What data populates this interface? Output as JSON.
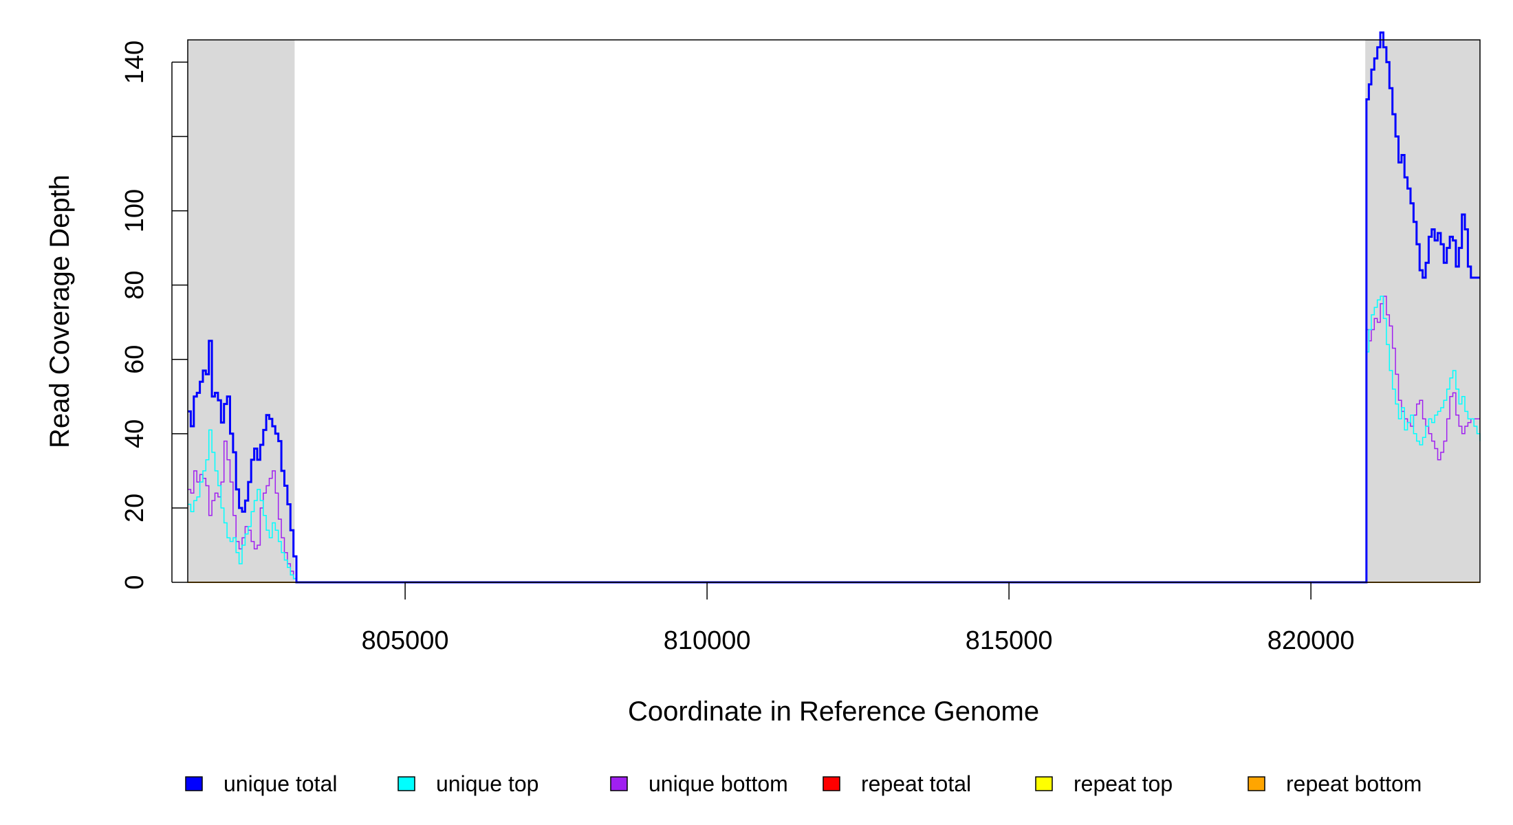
{
  "chart_data": {
    "type": "line",
    "title": "",
    "xlabel": "Coordinate in Reference Genome",
    "ylabel": "Read Coverage Depth",
    "xlim": [
      801400,
      822800
    ],
    "ylim": [
      0,
      146
    ],
    "x_ticks": [
      805000,
      810000,
      815000,
      820000
    ],
    "x_tick_labels": [
      "805000",
      "810000",
      "815000",
      "820000"
    ],
    "y_ticks": [
      0,
      20,
      40,
      60,
      80,
      100,
      120,
      140
    ],
    "y_tick_labels": [
      "0",
      "20",
      "40",
      "60",
      "80",
      "100",
      "",
      "140"
    ],
    "shaded_regions": [
      [
        801400,
        803170
      ],
      [
        820900,
        822800
      ]
    ],
    "shade_color": "#d9d9d9",
    "grid": false,
    "legend_position": "bottom",
    "series": [
      {
        "name": "unique total",
        "color": "#0000ff",
        "line_width": 3,
        "x": [
          801400,
          801450,
          801500,
          801550,
          801600,
          801650,
          801700,
          801750,
          801800,
          801850,
          801900,
          801950,
          802000,
          802050,
          802100,
          802150,
          802200,
          802250,
          802300,
          802350,
          802400,
          802450,
          802500,
          802550,
          802600,
          802650,
          802700,
          802750,
          802800,
          802850,
          802900,
          802950,
          803000,
          803050,
          803100,
          803150,
          803200,
          803250,
          803300,
          803350,
          803400,
          803450,
          803500,
          820900,
          820920,
          820960,
          821000,
          821050,
          821100,
          821150,
          821200,
          821250,
          821300,
          821350,
          821400,
          821450,
          821500,
          821550,
          821600,
          821650,
          821700,
          821750,
          821800,
          821850,
          821900,
          821950,
          822000,
          822050,
          822100,
          822150,
          822200,
          822250,
          822300,
          822350,
          822400,
          822450,
          822500,
          822550,
          822600,
          822650,
          822700,
          822750,
          822800
        ],
        "y": [
          46,
          42,
          50,
          51,
          54,
          57,
          56,
          65,
          50,
          51,
          49,
          43,
          48,
          50,
          40,
          35,
          25,
          20,
          19,
          22,
          27,
          33,
          36,
          33,
          37,
          41,
          45,
          44,
          42,
          40,
          38,
          30,
          26,
          21,
          14,
          7,
          0,
          0,
          0,
          0,
          0,
          0,
          0,
          0,
          130,
          134,
          138,
          141,
          144,
          148,
          144,
          140,
          133,
          126,
          120,
          113,
          115,
          109,
          106,
          102,
          97,
          91,
          84,
          82,
          86,
          93,
          95,
          92,
          94,
          91,
          86,
          90,
          93,
          92,
          85,
          90,
          99,
          95,
          85,
          82,
          82,
          82,
          82
        ]
      },
      {
        "name": "unique top",
        "color": "#00ffff",
        "line_width": 1.5,
        "x": [
          801400,
          801450,
          801500,
          801550,
          801600,
          801650,
          801700,
          801750,
          801800,
          801850,
          801900,
          801950,
          802000,
          802050,
          802100,
          802150,
          802200,
          802250,
          802300,
          802350,
          802400,
          802450,
          802500,
          802550,
          802600,
          802650,
          802700,
          802750,
          802800,
          802850,
          802900,
          802950,
          803000,
          803050,
          803100,
          803150,
          803200,
          803250,
          803300,
          803350,
          803400,
          803450,
          803500,
          820900,
          820920,
          820960,
          821000,
          821050,
          821100,
          821150,
          821200,
          821250,
          821300,
          821350,
          821400,
          821450,
          821500,
          821550,
          821600,
          821650,
          821700,
          821750,
          821800,
          821850,
          821900,
          821950,
          822000,
          822050,
          822100,
          822150,
          822200,
          822250,
          822300,
          822350,
          822400,
          822450,
          822500,
          822550,
          822600,
          822650,
          822700,
          822750,
          822800
        ],
        "y": [
          21,
          19,
          22,
          23,
          27,
          30,
          33,
          41,
          35,
          30,
          26,
          20,
          16,
          12,
          11,
          12,
          8,
          5,
          10,
          13,
          15,
          19,
          22,
          25,
          22,
          18,
          14,
          12,
          16,
          14,
          11,
          8,
          6,
          4,
          2,
          1,
          0,
          0,
          0,
          0,
          0,
          0,
          0,
          0,
          62,
          68,
          72,
          74,
          76,
          77,
          71,
          64,
          57,
          52,
          48,
          44,
          47,
          41,
          43,
          45,
          40,
          38,
          37,
          39,
          42,
          44,
          43,
          45,
          46,
          47,
          49,
          52,
          55,
          57,
          52,
          48,
          50,
          46,
          44,
          44,
          42,
          40,
          38
        ]
      },
      {
        "name": "unique bottom",
        "color": "#a020f0",
        "line_width": 1.5,
        "x": [
          801400,
          801450,
          801500,
          801550,
          801600,
          801650,
          801700,
          801750,
          801800,
          801850,
          801900,
          801950,
          802000,
          802050,
          802100,
          802150,
          802200,
          802250,
          802300,
          802350,
          802400,
          802450,
          802500,
          802550,
          802600,
          802650,
          802700,
          802750,
          802800,
          802850,
          802900,
          802950,
          803000,
          803050,
          803100,
          803150,
          803200,
          803250,
          803300,
          803350,
          803400,
          803450,
          803500,
          820900,
          820920,
          820960,
          821000,
          821050,
          821100,
          821150,
          821200,
          821250,
          821300,
          821350,
          821400,
          821450,
          821500,
          821550,
          821600,
          821650,
          821700,
          821750,
          821800,
          821850,
          821900,
          821950,
          822000,
          822050,
          822100,
          822150,
          822200,
          822250,
          822300,
          822350,
          822400,
          822450,
          822500,
          822550,
          822600,
          822650,
          822700,
          822750,
          822800
        ],
        "y": [
          25,
          24,
          30,
          27,
          29,
          28,
          26,
          18,
          22,
          24,
          23,
          27,
          38,
          33,
          27,
          18,
          11,
          9,
          12,
          15,
          14,
          11,
          9,
          10,
          20,
          24,
          26,
          28,
          30,
          24,
          17,
          12,
          8,
          5,
          3,
          1,
          0,
          0,
          0,
          0,
          0,
          0,
          0,
          0,
          68,
          65,
          68,
          71,
          70,
          75,
          77,
          72,
          69,
          63,
          56,
          49,
          46,
          44,
          43,
          42,
          45,
          48,
          49,
          44,
          42,
          40,
          38,
          36,
          33,
          35,
          38,
          44,
          50,
          51,
          45,
          42,
          40,
          42,
          43,
          44,
          44,
          44,
          44
        ]
      },
      {
        "name": "repeat total",
        "color": "#ff0000",
        "line_width": 1,
        "x": [
          801400,
          822800
        ],
        "y": [
          0,
          0
        ]
      },
      {
        "name": "repeat top",
        "color": "#ffff00",
        "line_width": 1,
        "x": [
          801400,
          822800
        ],
        "y": [
          0,
          0
        ]
      },
      {
        "name": "repeat bottom",
        "color": "#ffa500",
        "line_width": 2,
        "x": [
          801400,
          822800
        ],
        "y": [
          0,
          0
        ]
      }
    ]
  }
}
